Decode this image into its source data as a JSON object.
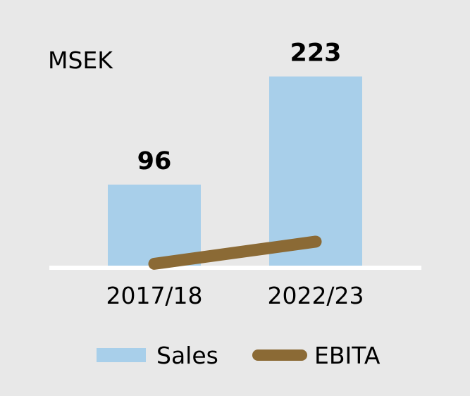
{
  "chart_data": {
    "type": "bar",
    "unit_label": "MSEK",
    "categories": [
      "2017/18",
      "2022/23"
    ],
    "series": [
      {
        "name": "Sales",
        "kind": "bar",
        "values": [
          96,
          223
        ],
        "color": "#a8cfea"
      },
      {
        "name": "EBITA",
        "kind": "line",
        "values": [
          3,
          29
        ],
        "color": "#8b6a35"
      }
    ],
    "data_labels": [
      "96",
      "223"
    ],
    "ylim": [
      0,
      240
    ],
    "grid": false,
    "legend": "bottom"
  }
}
